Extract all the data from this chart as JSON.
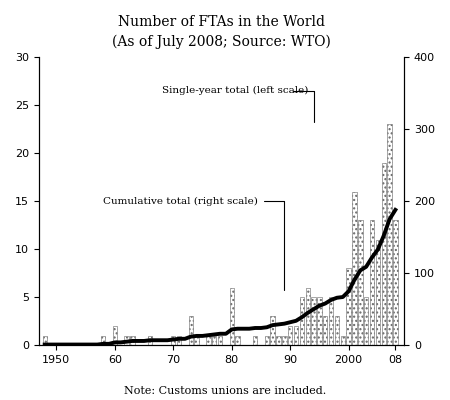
{
  "title": "Number of FTAs in the World",
  "subtitle": "(As of July 2008; Source: WTO)",
  "note": "Note: Customs unions are included.",
  "left_label": "Single-year total (left scale)",
  "right_label": "Cumulative total (right scale)",
  "years": [
    1948,
    1949,
    1950,
    1951,
    1952,
    1953,
    1954,
    1955,
    1956,
    1957,
    1958,
    1959,
    1960,
    1961,
    1962,
    1963,
    1964,
    1965,
    1966,
    1967,
    1968,
    1969,
    1970,
    1971,
    1972,
    1973,
    1974,
    1975,
    1976,
    1977,
    1978,
    1979,
    1980,
    1981,
    1982,
    1983,
    1984,
    1985,
    1986,
    1987,
    1988,
    1989,
    1990,
    1991,
    1992,
    1993,
    1994,
    1995,
    1996,
    1997,
    1998,
    1999,
    2000,
    2001,
    2002,
    2003,
    2004,
    2005,
    2006,
    2007,
    2008
  ],
  "single_year": [
    1,
    0,
    0,
    0,
    0,
    0,
    0,
    0,
    0,
    0,
    1,
    0,
    2,
    0,
    1,
    1,
    0,
    0,
    1,
    0,
    0,
    0,
    1,
    1,
    0,
    3,
    1,
    0,
    1,
    1,
    1,
    0,
    6,
    1,
    0,
    0,
    1,
    0,
    1,
    3,
    1,
    1,
    2,
    2,
    5,
    6,
    5,
    5,
    3,
    5,
    3,
    1,
    8,
    16,
    13,
    5,
    13,
    11,
    19,
    23,
    13
  ],
  "cumulative": [
    1,
    1,
    1,
    1,
    1,
    1,
    1,
    1,
    1,
    1,
    2,
    2,
    4,
    4,
    5,
    6,
    6,
    6,
    7,
    7,
    7,
    7,
    8,
    9,
    9,
    12,
    13,
    13,
    14,
    15,
    16,
    16,
    22,
    23,
    23,
    23,
    24,
    24,
    25,
    28,
    29,
    30,
    32,
    34,
    39,
    45,
    50,
    55,
    58,
    63,
    66,
    67,
    75,
    91,
    104,
    109,
    122,
    133,
    152,
    175,
    188
  ],
  "ylim_left": [
    0,
    30
  ],
  "ylim_right": [
    0,
    400
  ],
  "yticks_left": [
    0,
    5,
    10,
    15,
    20,
    25,
    30
  ],
  "yticks_right": [
    0,
    100,
    200,
    300,
    400
  ],
  "line_color": "#000000",
  "line_width": 2.8,
  "background_color": "#ffffff"
}
